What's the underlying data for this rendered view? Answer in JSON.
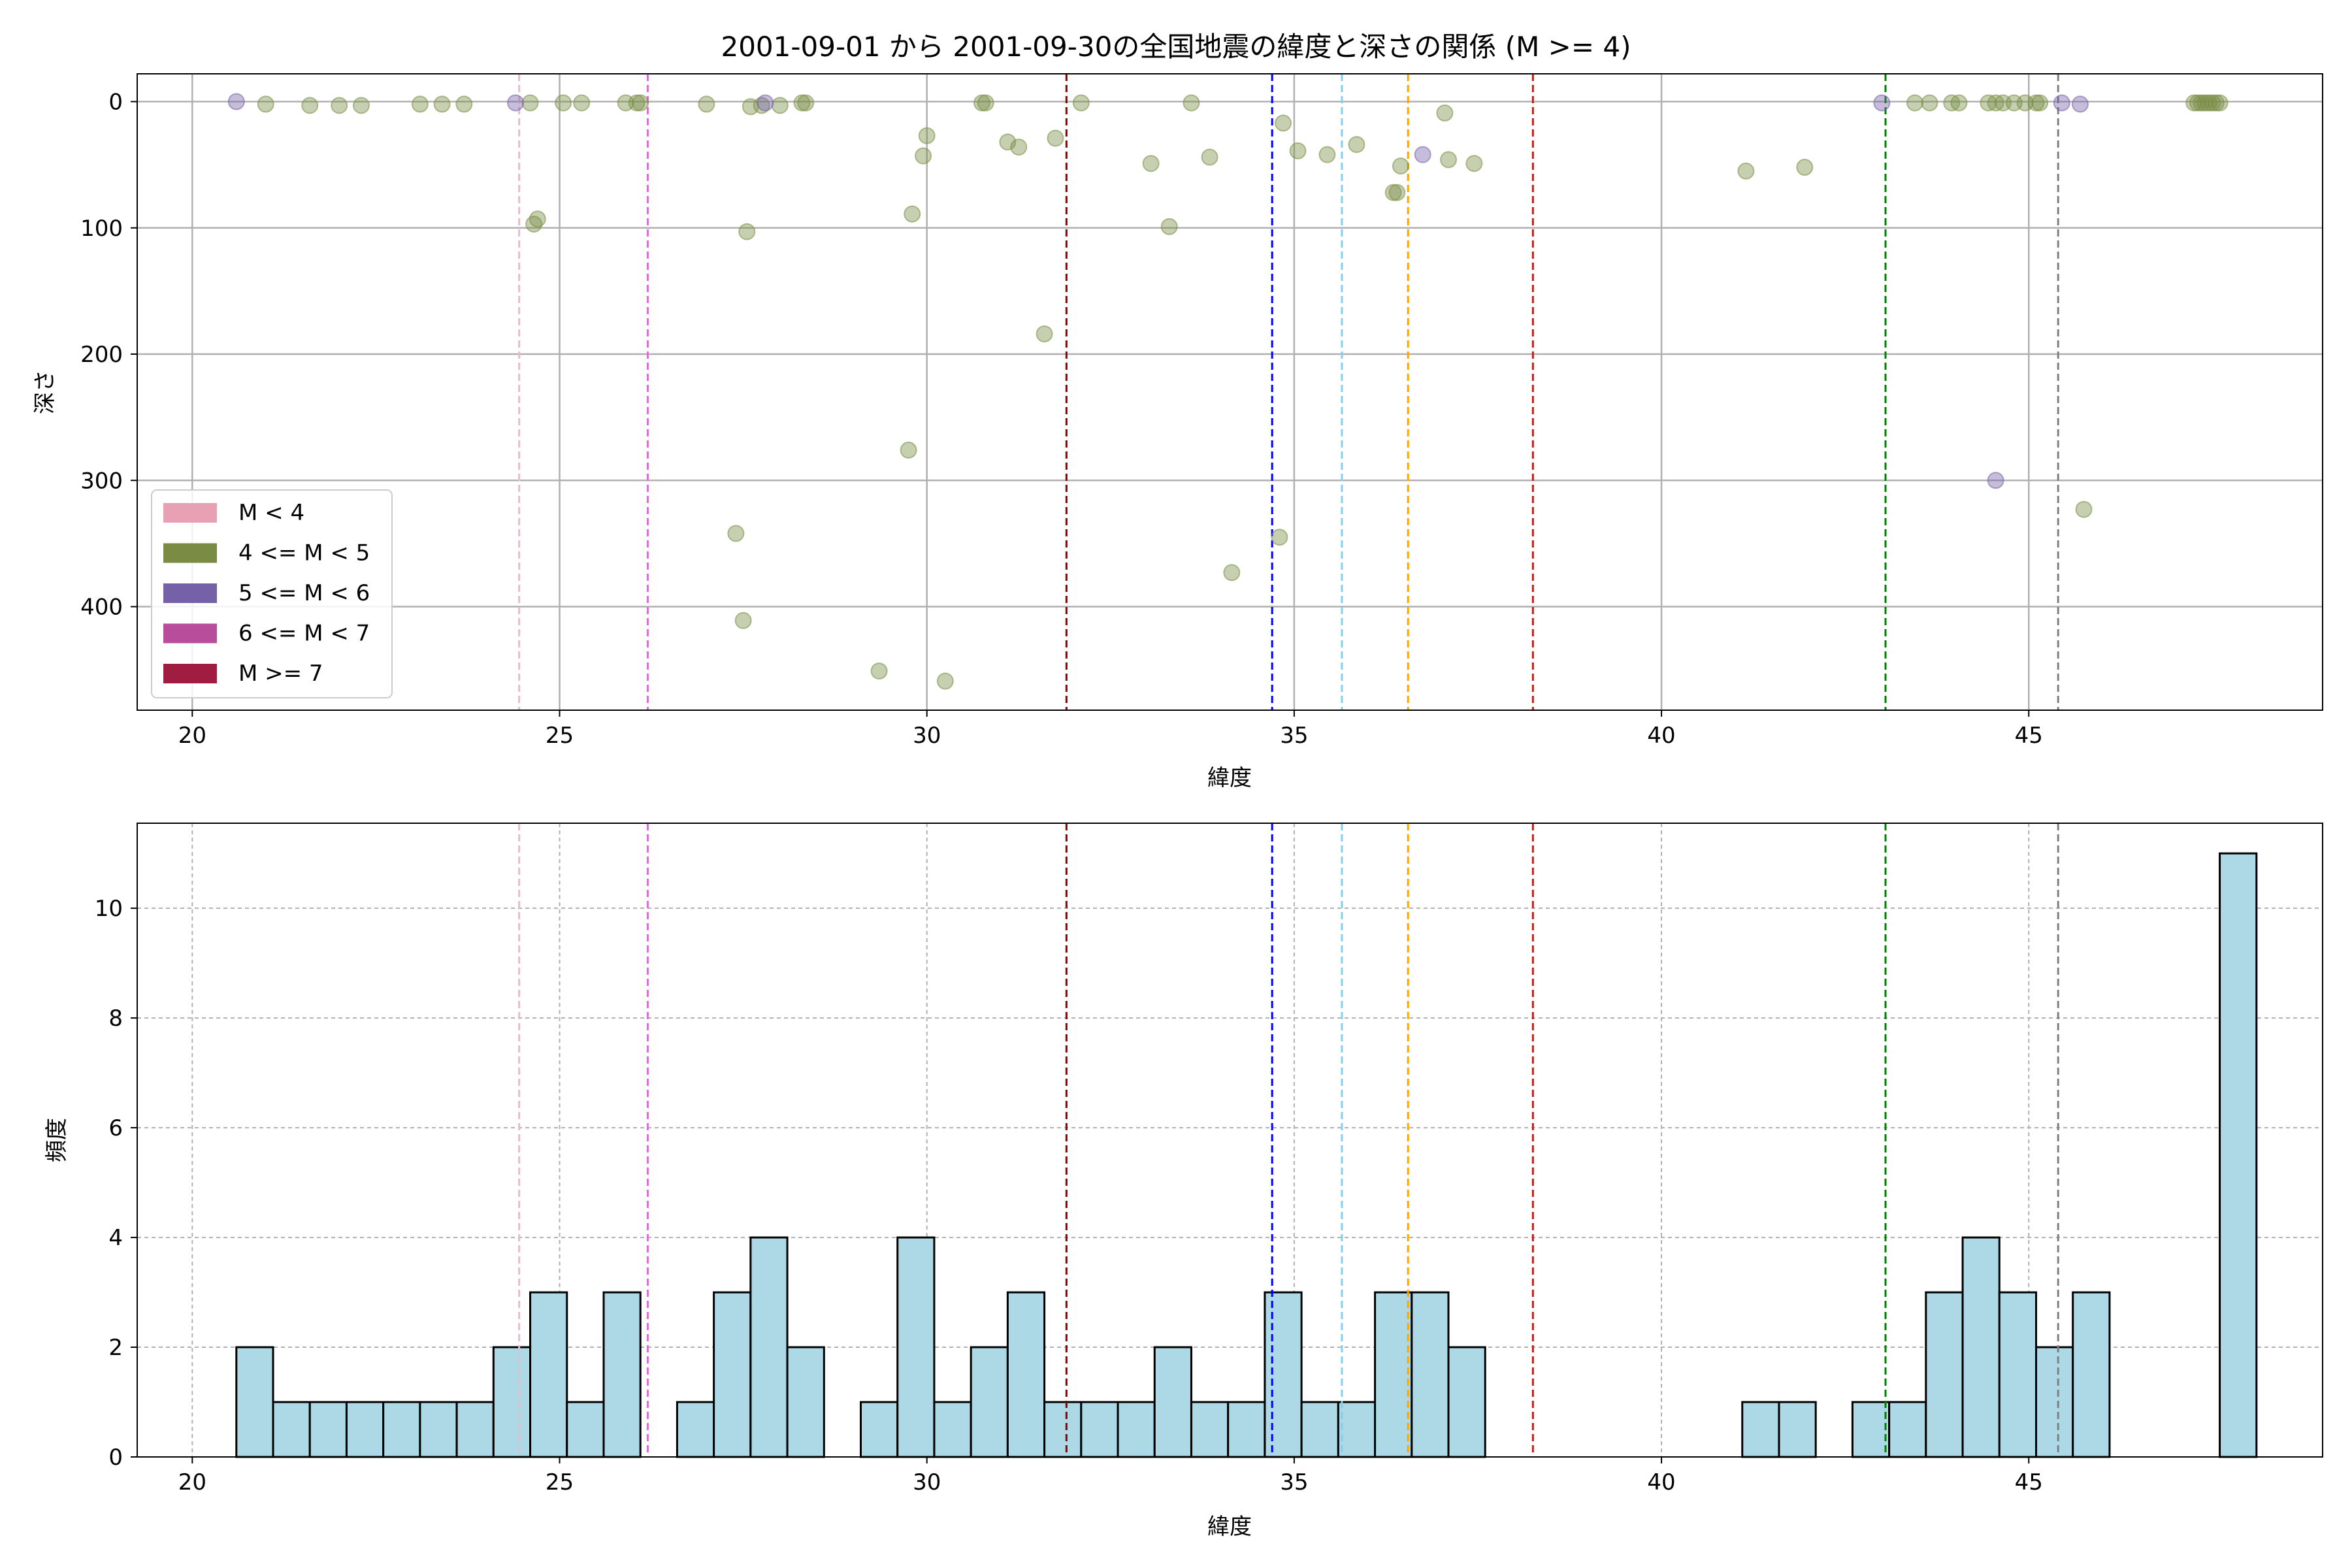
{
  "chart_data": [
    {
      "type": "scatter",
      "title": "2001-09-01 から 2001-09-30の全国地震の緯度と深さの関係 (M >= 4)",
      "xlabel": "緯度",
      "ylabel": "深さ",
      "xlim": [
        19.25,
        49.0
      ],
      "ylim": [
        482,
        -22
      ],
      "y_inverted": true,
      "xticks": [
        20,
        25,
        30,
        35,
        40,
        45
      ],
      "yticks": [
        0,
        100,
        200,
        300,
        400
      ],
      "grid": true,
      "legend": {
        "position": "lower-left",
        "entries": [
          {
            "label": "M < 4",
            "color": "#e8a0b4"
          },
          {
            "label": "4 <= M < 5",
            "color": "#7a8c44"
          },
          {
            "label": "5 <= M < 6",
            "color": "#7461a8"
          },
          {
            "label": "6 <= M < 7",
            "color": "#b84d9c"
          },
          {
            "label": "M >= 7",
            "color": "#a01c40"
          }
        ]
      },
      "vlines": [
        {
          "x": 24.45,
          "color": "#f4b6cc"
        },
        {
          "x": 26.2,
          "color": "#da70d6"
        },
        {
          "x": 31.9,
          "color": "#8b0000"
        },
        {
          "x": 34.7,
          "color": "#0000ff"
        },
        {
          "x": 35.65,
          "color": "#87ceeb"
        },
        {
          "x": 36.55,
          "color": "#ffa500"
        },
        {
          "x": 38.25,
          "color": "#ff0000"
        },
        {
          "x": 43.05,
          "color": "#008000"
        },
        {
          "x": 45.4,
          "color": "#808080"
        }
      ],
      "series": [
        {
          "name": "4 <= M < 5",
          "color": "#7a8c44",
          "points": [
            [
              21.0,
              2
            ],
            [
              21.6,
              3
            ],
            [
              22.0,
              3
            ],
            [
              22.3,
              3
            ],
            [
              23.1,
              2
            ],
            [
              23.4,
              2
            ],
            [
              23.7,
              2
            ],
            [
              24.6,
              1
            ],
            [
              24.65,
              97
            ],
            [
              24.7,
              93
            ],
            [
              25.05,
              1
            ],
            [
              25.3,
              1
            ],
            [
              25.9,
              1
            ],
            [
              26.05,
              1
            ],
            [
              26.1,
              1
            ],
            [
              27.0,
              2
            ],
            [
              27.4,
              342
            ],
            [
              27.5,
              411
            ],
            [
              27.55,
              103
            ],
            [
              27.6,
              4
            ],
            [
              27.75,
              3
            ],
            [
              28.0,
              3
            ],
            [
              28.3,
              1
            ],
            [
              28.35,
              1
            ],
            [
              29.35,
              451
            ],
            [
              29.75,
              276
            ],
            [
              29.8,
              89
            ],
            [
              29.95,
              43
            ],
            [
              30.0,
              27
            ],
            [
              30.25,
              459
            ],
            [
              30.75,
              1
            ],
            [
              30.8,
              1
            ],
            [
              31.1,
              32
            ],
            [
              31.25,
              36
            ],
            [
              31.6,
              184
            ],
            [
              31.75,
              29
            ],
            [
              32.1,
              1
            ],
            [
              33.05,
              49
            ],
            [
              33.3,
              99
            ],
            [
              33.6,
              1
            ],
            [
              33.85,
              44
            ],
            [
              34.15,
              373
            ],
            [
              34.8,
              345
            ],
            [
              34.85,
              17
            ],
            [
              35.05,
              39
            ],
            [
              35.45,
              42
            ],
            [
              35.85,
              34
            ],
            [
              36.35,
              72
            ],
            [
              36.4,
              72
            ],
            [
              36.45,
              51
            ],
            [
              37.05,
              9
            ],
            [
              37.1,
              46
            ],
            [
              37.45,
              49
            ],
            [
              41.15,
              55
            ],
            [
              41.95,
              52
            ],
            [
              43.45,
              1
            ],
            [
              43.65,
              1
            ],
            [
              43.95,
              1
            ],
            [
              44.05,
              1
            ],
            [
              44.45,
              1
            ],
            [
              44.55,
              1
            ],
            [
              44.65,
              1
            ],
            [
              44.8,
              1
            ],
            [
              44.95,
              1
            ],
            [
              45.1,
              1
            ],
            [
              45.15,
              1
            ],
            [
              45.75,
              323
            ],
            [
              47.25,
              1
            ],
            [
              47.3,
              1
            ],
            [
              47.35,
              1
            ],
            [
              47.4,
              1
            ],
            [
              47.45,
              1
            ],
            [
              47.5,
              1
            ],
            [
              47.55,
              1
            ],
            [
              47.6,
              1
            ]
          ]
        },
        {
          "name": "5 <= M < 6",
          "color": "#7461a8",
          "points": [
            [
              20.6,
              0
            ],
            [
              24.4,
              1
            ],
            [
              27.8,
              1
            ],
            [
              43.0,
              1
            ],
            [
              44.55,
              300
            ],
            [
              45.45,
              1
            ],
            [
              45.7,
              2
            ],
            [
              36.75,
              42
            ]
          ]
        }
      ]
    },
    {
      "type": "bar",
      "xlabel": "緯度",
      "ylabel": "頻度",
      "xlim": [
        19.25,
        49.0
      ],
      "ylim": [
        0,
        11.55
      ],
      "xticks": [
        20,
        25,
        30,
        35,
        40,
        45
      ],
      "yticks": [
        0,
        2,
        4,
        6,
        8,
        10
      ],
      "grid": true,
      "bin_start": 20.6,
      "bin_width": 0.5,
      "counts": [
        2,
        1,
        1,
        1,
        1,
        1,
        1,
        2,
        3,
        1,
        3,
        0,
        1,
        3,
        4,
        2,
        0,
        1,
        4,
        1,
        2,
        3,
        1,
        1,
        1,
        2,
        1,
        1,
        3,
        1,
        1,
        3,
        3,
        2,
        0,
        0,
        0,
        0,
        0,
        0,
        0,
        1,
        1,
        0,
        1,
        1,
        3,
        4,
        3,
        2,
        3,
        0,
        0,
        0,
        11
      ],
      "bar_color": "#add8e6",
      "vlines": [
        {
          "x": 24.45,
          "color": "#f4b6cc"
        },
        {
          "x": 26.2,
          "color": "#da70d6"
        },
        {
          "x": 31.9,
          "color": "#8b0000"
        },
        {
          "x": 34.7,
          "color": "#0000ff"
        },
        {
          "x": 35.65,
          "color": "#87ceeb"
        },
        {
          "x": 36.55,
          "color": "#ffa500"
        },
        {
          "x": 38.25,
          "color": "#ff0000"
        },
        {
          "x": 43.05,
          "color": "#008000"
        },
        {
          "x": 45.4,
          "color": "#808080"
        }
      ]
    }
  ]
}
